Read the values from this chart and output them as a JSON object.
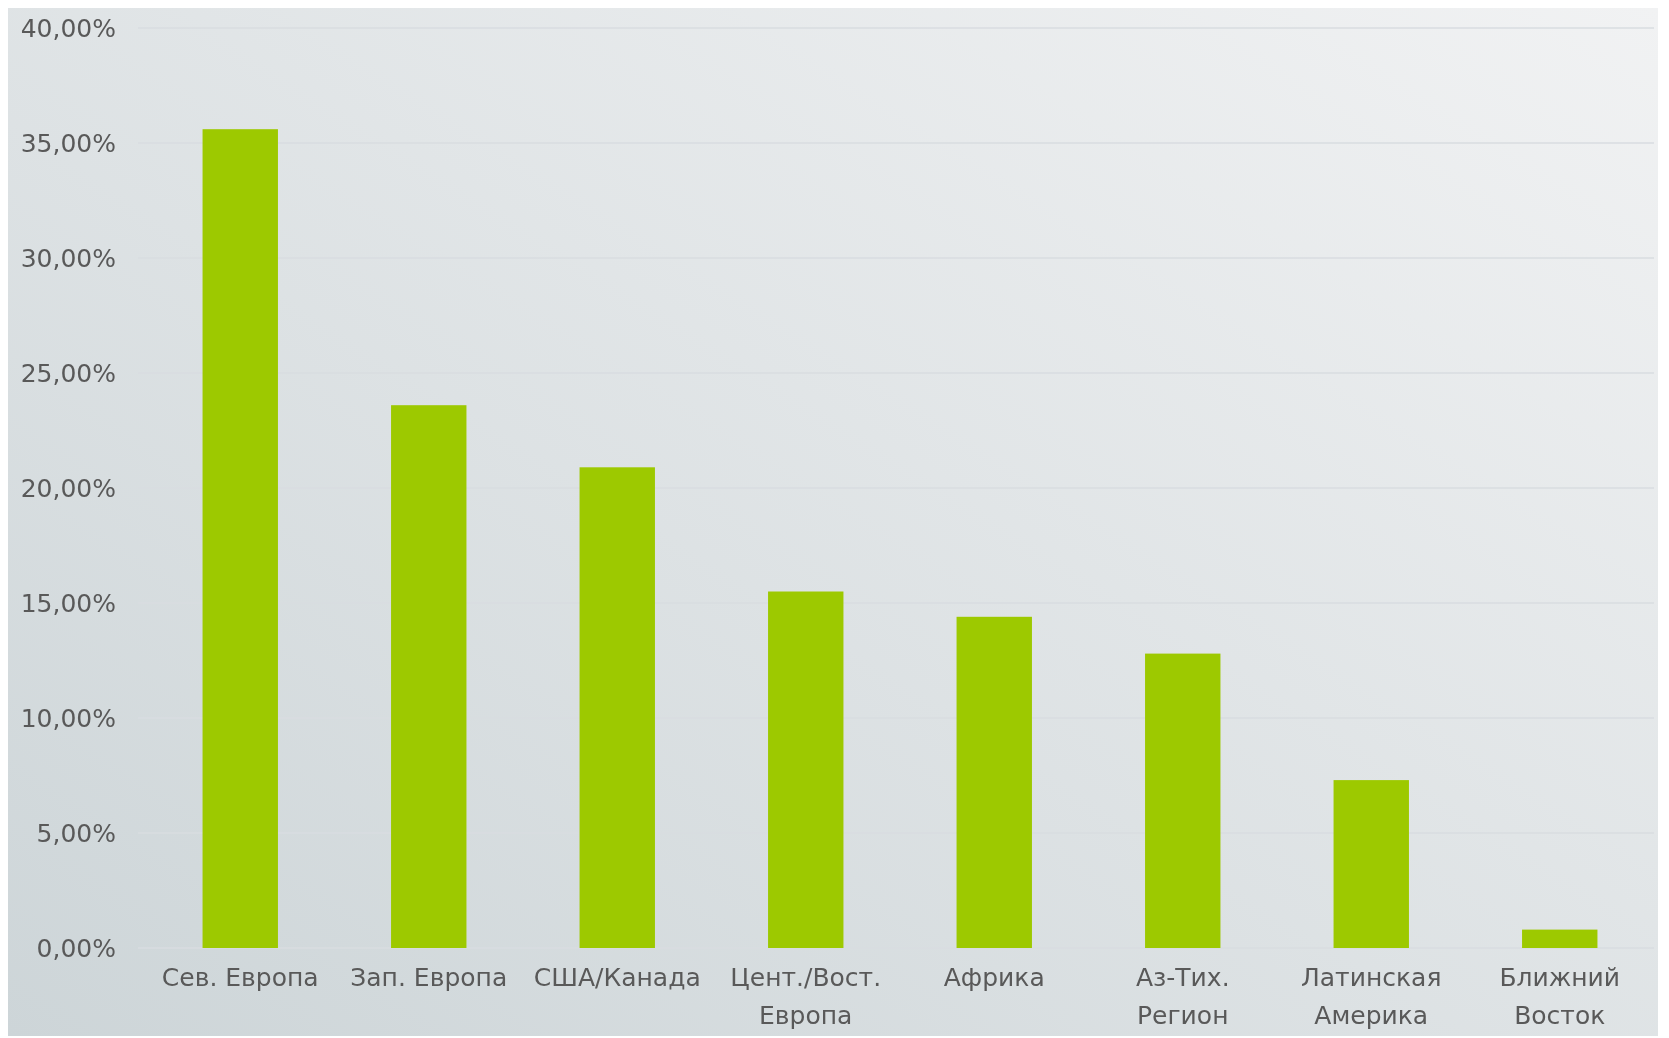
{
  "chart_data": {
    "type": "bar",
    "categories": [
      "Сев. Европа",
      "Зап. Европа",
      "США/Канада",
      "Цент./Вост. Европа",
      "Африка",
      "Аз-Тих. Регион",
      "Латинская Америка",
      "Ближний Восток"
    ],
    "values": [
      35.6,
      23.6,
      20.9,
      15.5,
      14.4,
      12.8,
      7.3,
      0.8
    ],
    "color": "#9dc900",
    "ylim": [
      0,
      40
    ],
    "yticks": [
      {
        "value": 0,
        "label": "0,00%"
      },
      {
        "value": 5,
        "label": "5,00%"
      },
      {
        "value": 10,
        "label": "10,00%"
      },
      {
        "value": 15,
        "label": "15,00%"
      },
      {
        "value": 20,
        "label": "20,00%"
      },
      {
        "value": 25,
        "label": "25,00%"
      },
      {
        "value": 30,
        "label": "30,00%"
      },
      {
        "value": 35,
        "label": "35,00%"
      },
      {
        "value": 40,
        "label": "40,00%"
      }
    ],
    "grid": "y"
  }
}
